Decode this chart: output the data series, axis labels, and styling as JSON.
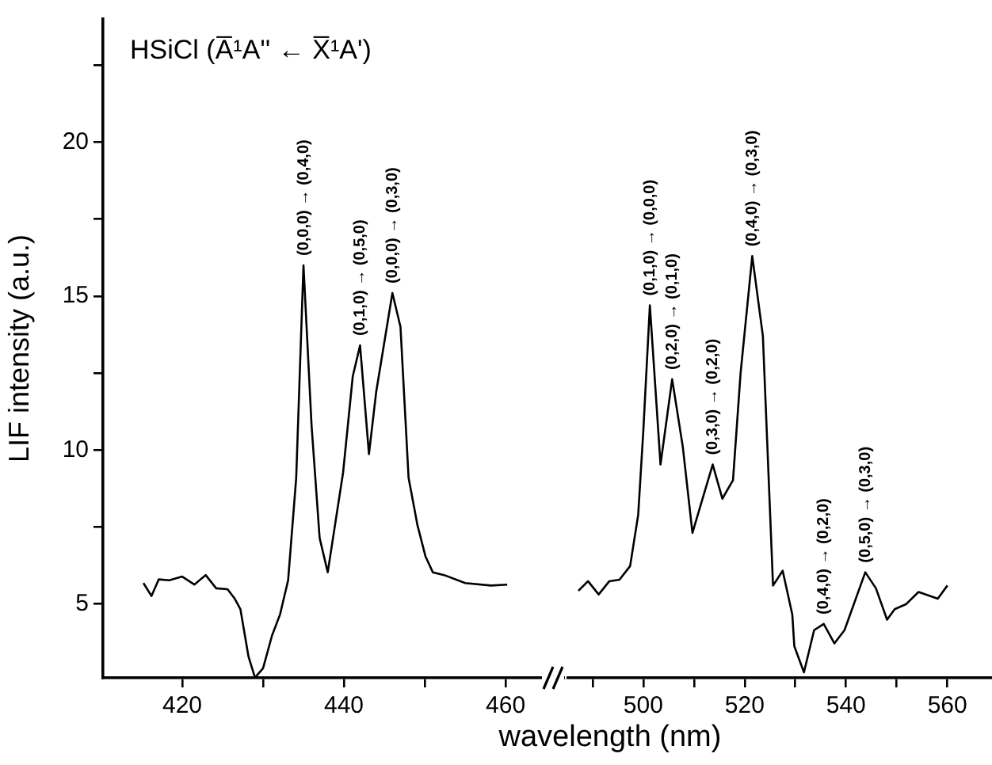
{
  "chart_data": [
    {
      "type": "line",
      "title": "HSiCl (A̅¹A'' ← X̅¹A')",
      "xlabel": "wavelength (nm)",
      "ylabel": "LIF intensity (a.u.)",
      "color": "#000000",
      "x": [
        415.2,
        416.2,
        417.1,
        418.4,
        420,
        421.5,
        422.9,
        424.2,
        425.6,
        426.5,
        427.2,
        428.2,
        429.0,
        430.0,
        431.1,
        432.1,
        433.1,
        434.1,
        435.0,
        436.0,
        437.0,
        438.0,
        439.9,
        441.1,
        442.0,
        443.1,
        444.0,
        446.0,
        447.0,
        448.0,
        449.1,
        450.1,
        451.0,
        452.4,
        455.0,
        458.2,
        460.2
      ],
      "values": [
        5.68,
        5.26,
        5.8,
        5.77,
        5.89,
        5.63,
        5.94,
        5.51,
        5.48,
        5.17,
        4.83,
        3.29,
        2.61,
        2.91,
        3.97,
        4.66,
        5.77,
        9.1,
        16.0,
        10.8,
        7.14,
        6.03,
        9.27,
        12.4,
        13.4,
        9.87,
        11.9,
        15.1,
        14.0,
        9.1,
        7.56,
        6.54,
        6.03,
        5.94,
        5.68,
        5.6,
        5.63
      ],
      "xlim": [
        410.2,
        464.5
      ],
      "xticks": [
        420,
        {
          "value": 430,
          "label": null
        },
        440,
        {
          "value": 450,
          "label": null
        },
        460
      ],
      "ylim": [
        2.6,
        24
      ],
      "yticks": [
        5,
        {
          "value": 7.5,
          "label": null
        },
        10,
        {
          "value": 12.5,
          "label": null
        },
        15,
        {
          "value": 17.5,
          "label": null
        },
        20,
        {
          "value": 22.5,
          "label": null
        }
      ],
      "annotations": [
        {
          "text": "(0,0,0) → (0,4,0)",
          "x": 435.0,
          "y": 16.0
        },
        {
          "text": "(0,1,0) → (0,5,0)",
          "x": 442.0,
          "y": 13.4
        },
        {
          "text": "(0,0,0) → (0,3,0)",
          "x": 446.0,
          "y": 15.1
        }
      ]
    },
    {
      "type": "line",
      "color": "#000000",
      "tick_labels": "x",
      "x": [
        487.2,
        489.1,
        491.2,
        493.3,
        495.3,
        497.4,
        499.0,
        500.0,
        501.3,
        502.6,
        503.4,
        505.7,
        507.8,
        509.7,
        511.7,
        513.7,
        515.6,
        517.7,
        519.2,
        521.5,
        523.6,
        525.6,
        527.5,
        529.4,
        529.8,
        531.7,
        533.7,
        535.6,
        537.7,
        539.7,
        543.8,
        545.9,
        548.1,
        549.6,
        551.9,
        554.3,
        558.1,
        560.0
      ],
      "values": [
        5.43,
        5.74,
        5.31,
        5.74,
        5.79,
        6.23,
        7.9,
        10.6,
        14.7,
        11.5,
        9.53,
        12.3,
        10.1,
        7.31,
        8.42,
        9.53,
        8.42,
        9.02,
        12.5,
        16.3,
        13.7,
        5.6,
        6.08,
        4.66,
        3.63,
        2.78,
        4.15,
        4.35,
        3.72,
        4.15,
        6.03,
        5.51,
        4.49,
        4.83,
        5.0,
        5.39,
        5.17,
        5.6
      ],
      "xlim": [
        484.7,
        568.8
      ],
      "xticks": [
        {
          "value": 490,
          "label": null
        },
        500,
        {
          "value": 510,
          "label": null
        },
        520,
        {
          "value": 530,
          "label": null
        },
        540,
        {
          "value": 550,
          "label": null
        },
        560
      ],
      "ylim": [
        2.6,
        24
      ],
      "yticks": [
        5,
        10,
        15,
        20
      ],
      "annotations": [
        {
          "text": "(0,1,0) → (0,0,0)",
          "x": 501.3,
          "y": 14.7
        },
        {
          "text": "(0,2,0) → (0,1,0)",
          "x": 505.7,
          "y": 12.3
        },
        {
          "text": "(0,3,0) → (0,2,0)",
          "x": 513.7,
          "y": 9.53
        },
        {
          "text": "(0,4,0) → (0,3,0)",
          "x": 521.5,
          "y": 16.3
        },
        {
          "text": "(0,4,0) → (0,2,0)",
          "x": 535.6,
          "y": 4.35
        },
        {
          "text": "(0,5,0) → (0,3,0)",
          "x": 543.8,
          "y": 6.03
        }
      ]
    }
  ]
}
